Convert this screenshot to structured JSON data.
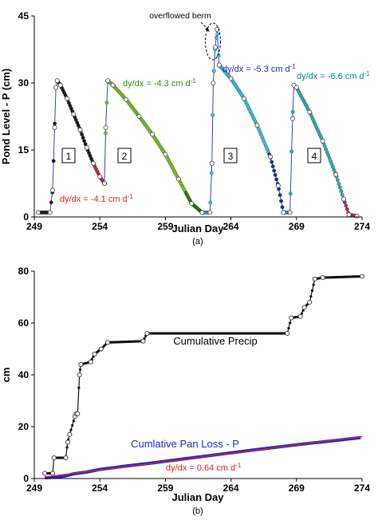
{
  "colors": {
    "axis": "#000000",
    "series_a_pts": "#1f1f1f",
    "series_a_line": "#3340c8",
    "seg1_pts": "#1a1a1a",
    "seg1_tail": "#d02040",
    "seg2_pts": "#7cc820",
    "seg2_dark": "#2f7a10",
    "seg3_pts": "#3cc0e8",
    "seg3_dark": "#1030a0",
    "seg4_pts": "#30b0b0",
    "seg4_tail": "#c02070",
    "precip": "#111111",
    "pan": "#1a28d0",
    "fit": "#e02020",
    "label_red": "#e02020",
    "label_green": "#2e8a10",
    "label_blue": "#2020c0",
    "label_teal": "#008a8a"
  },
  "chart_data": [
    {
      "type": "line",
      "panel_label": "(a)",
      "xlabel": "Julian Day",
      "ylabel": "Pond Level - P (cm)",
      "xlim": [
        249,
        274
      ],
      "ylim": [
        0,
        45
      ],
      "xticks": [
        "249",
        "254",
        "259",
        "264",
        "269",
        "274"
      ],
      "yticks": [
        "0",
        "15",
        "30",
        "45"
      ],
      "grid": false,
      "annotations": {
        "berm": "overflowed berm",
        "slope1": "dy/dx = -4.1 cm d",
        "slope2": "dy/dx = -4.3 cm d",
        "slope3": "dy/dx = -5.3 cm d",
        "slope4": "dy/dx = -6.6 cm d",
        "exp": "-1"
      },
      "event_labels": [
        "1",
        "2",
        "3",
        "4"
      ],
      "series": [
        {
          "segment": 1,
          "x": [
            249.3,
            250.2,
            250.4,
            250.55,
            250.65,
            250.75,
            251.0,
            251.5,
            252.0,
            252.5,
            253.0,
            253.5,
            254.0,
            254.35
          ],
          "y": [
            1,
            1,
            6,
            20,
            29,
            30.5,
            29.5,
            26.5,
            23,
            19.5,
            15.5,
            12,
            9,
            7.5
          ]
        },
        {
          "segment": 2,
          "x": [
            254.35,
            254.45,
            254.6,
            255.0,
            256.0,
            257.0,
            258.0,
            259.0,
            260.0,
            261.0,
            261.8
          ],
          "y": [
            7.5,
            20,
            30.5,
            29.5,
            26.3,
            22.5,
            18.5,
            14.0,
            8.5,
            3.0,
            1.0
          ]
        },
        {
          "segment": 3,
          "x": [
            261.8,
            262.4,
            262.55,
            262.65,
            262.8,
            262.95,
            263.1,
            264.0,
            265.0,
            266.0,
            267.0,
            267.6,
            268.0
          ],
          "y": [
            1.0,
            1.0,
            12,
            30,
            38,
            42,
            34,
            31,
            26.5,
            20.5,
            13.5,
            7,
            1.0
          ]
        },
        {
          "segment": 4,
          "x": [
            268.0,
            268.5,
            268.7,
            268.8,
            269.0,
            270.0,
            271.0,
            272.0,
            272.6,
            273.0,
            273.6
          ],
          "y": [
            1.0,
            1.0,
            22,
            29.5,
            29.0,
            23.5,
            17.0,
            9.5,
            4.0,
            0.5,
            0.2
          ]
        }
      ]
    },
    {
      "type": "line",
      "panel_label": "(b)",
      "xlabel": "Julian Day",
      "ylabel": "cm",
      "xlim": [
        249,
        274
      ],
      "ylim": [
        0,
        80
      ],
      "xticks": [
        "249",
        "254",
        "259",
        "264",
        "269",
        "274"
      ],
      "yticks": [
        "0",
        "20",
        "40",
        "60",
        "80"
      ],
      "grid": false,
      "legend": {
        "precip": "Cumulative Precip",
        "pan": "Cumlative Pan Loss - P",
        "fit": "dy/dx = 0.64 cm d",
        "exp": "-1"
      },
      "series": [
        {
          "name": "Cumulative Precip",
          "x": [
            249.8,
            250.4,
            250.5,
            251.4,
            251.55,
            251.7,
            252.1,
            252.2,
            252.3,
            252.45,
            252.55,
            253.3,
            253.6,
            254.1,
            254.6,
            257.3,
            257.6,
            268.3,
            268.6,
            269.3,
            269.6,
            270.0,
            270.4,
            271.0,
            274.0
          ],
          "y": [
            2,
            2,
            8,
            8,
            14,
            17,
            24,
            25,
            25,
            40,
            44,
            45,
            48,
            50,
            52.5,
            53,
            56,
            56,
            62,
            62.5,
            66,
            68,
            77,
            77.5,
            78
          ]
        },
        {
          "name": "Cumlative Pan Loss - P",
          "x": [
            249.8,
            250.5,
            251.3,
            252.0,
            253.0,
            254.0,
            256.0,
            258.0,
            260.0,
            262.0,
            264.0,
            266.0,
            268.0,
            270.0,
            272.0,
            273.9
          ],
          "y": [
            0.3,
            0.5,
            0.9,
            1.8,
            2.5,
            3.5,
            4.8,
            6.0,
            7.3,
            8.6,
            9.9,
            11.2,
            12.4,
            13.6,
            14.7,
            15.8
          ]
        },
        {
          "name": "dy/dx = 0.64 cm d-1 (fit)",
          "x": [
            249.8,
            274.0
          ],
          "y": [
            0.6,
            16.2
          ]
        }
      ]
    }
  ]
}
